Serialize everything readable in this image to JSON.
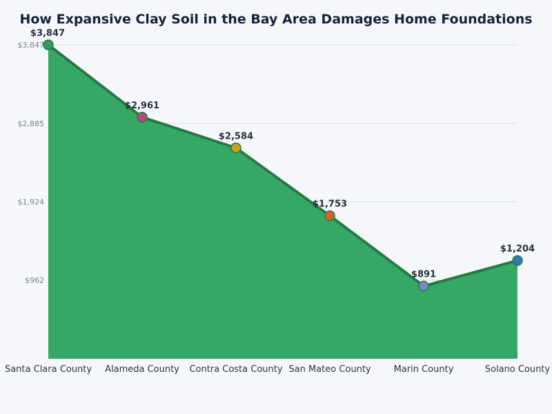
{
  "chart_data": {
    "type": "area",
    "title": "How Expansive Clay Soil in the Bay Area Damages Home Foundations",
    "xlabel": "",
    "ylabel": "",
    "categories": [
      "Santa Clara County",
      "Alameda County",
      "Contra Costa County",
      "San Mateo County",
      "Marin County",
      "Solano County"
    ],
    "values": [
      3847,
      2961,
      2584,
      1753,
      891,
      1204
    ],
    "value_labels": [
      "$3,847",
      "$2,961",
      "$2,584",
      "$1,753",
      "$891",
      "$1,204"
    ],
    "y_ticks": [
      962,
      1924,
      2885,
      3847
    ],
    "y_tick_labels": [
      "$962",
      "$1,924",
      "$2,885",
      "$3,847"
    ],
    "ylim": [
      0,
      3847
    ],
    "grid": true,
    "legend": "none",
    "colors": {
      "area_fill": "#36a865",
      "line": "#247a44",
      "grid": "#d9dde5",
      "markers": [
        "#2e9e5b",
        "#c2467e",
        "#c9a21f",
        "#d9602b",
        "#7a87c9",
        "#2f78bd"
      ]
    }
  }
}
